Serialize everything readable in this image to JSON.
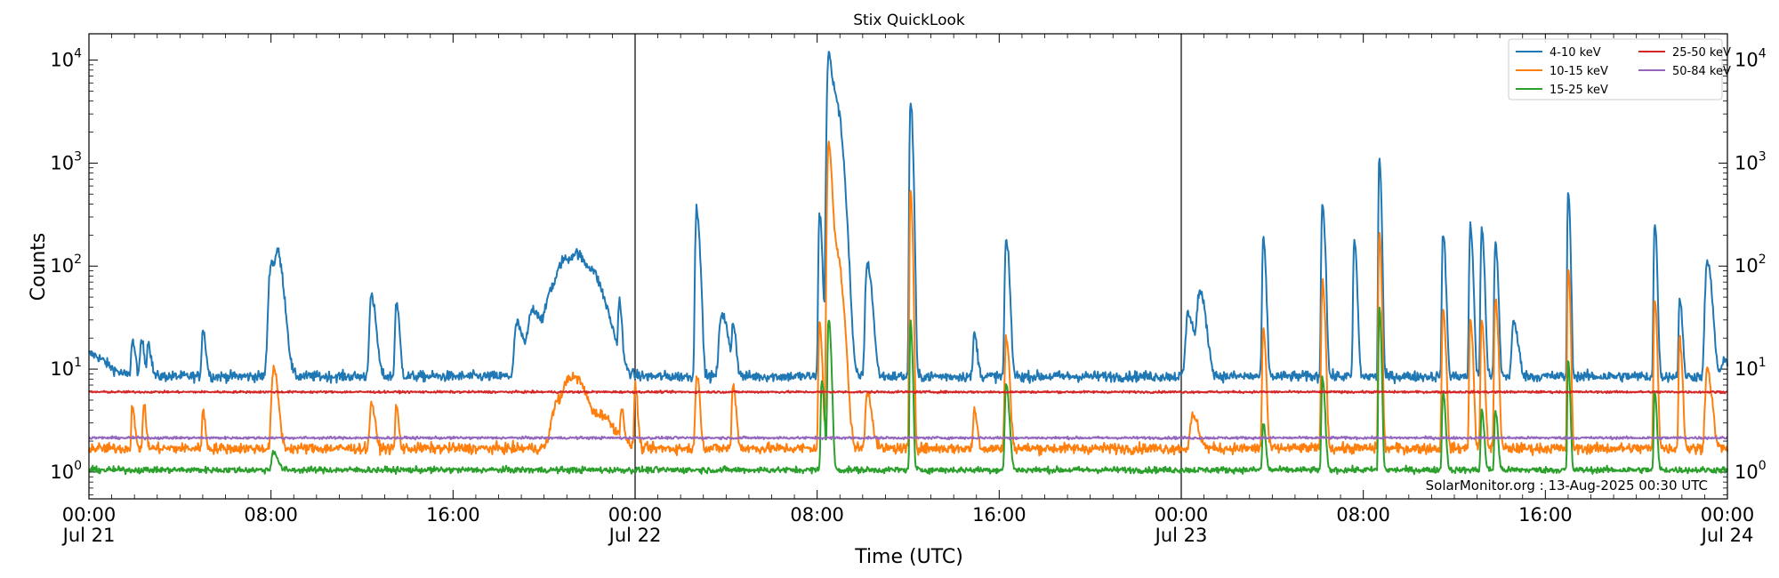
{
  "chart_data": {
    "type": "line",
    "title": "Stix QuickLook",
    "xlabel": "Time (UTC)",
    "ylabel": "Counts",
    "yscale": "log",
    "ylim": [
      0.55,
      18000
    ],
    "xlim_hours": [
      0,
      72
    ],
    "grid": false,
    "legend_position": "top-right",
    "y_ticks": [
      {
        "base": "10",
        "exp": "0",
        "value": 1
      },
      {
        "base": "10",
        "exp": "1",
        "value": 10
      },
      {
        "base": "10",
        "exp": "2",
        "value": 100
      },
      {
        "base": "10",
        "exp": "3",
        "value": 1000
      },
      {
        "base": "10",
        "exp": "4",
        "value": 10000
      }
    ],
    "x_ticks": [
      {
        "hour": 0,
        "time": "00:00",
        "date": "Jul 21"
      },
      {
        "hour": 8,
        "time": "08:00",
        "date": ""
      },
      {
        "hour": 16,
        "time": "16:00",
        "date": ""
      },
      {
        "hour": 24,
        "time": "00:00",
        "date": "Jul 22"
      },
      {
        "hour": 32,
        "time": "08:00",
        "date": ""
      },
      {
        "hour": 40,
        "time": "16:00",
        "date": ""
      },
      {
        "hour": 48,
        "time": "00:00",
        "date": "Jul 23"
      },
      {
        "hour": 56,
        "time": "08:00",
        "date": ""
      },
      {
        "hour": 64,
        "time": "16:00",
        "date": ""
      },
      {
        "hour": 72,
        "time": "00:00",
        "date": "Jul 24"
      }
    ],
    "day_boundaries_hours": [
      24,
      48
    ],
    "series": [
      {
        "name": "4-10 keV",
        "color": "#1f77b4",
        "baseline": 8.5,
        "noise": 0.05,
        "peaks": [
          [
            0,
            14,
            0.6
          ],
          [
            1.9,
            19,
            0.1
          ],
          [
            2.3,
            19,
            0.1
          ],
          [
            2.6,
            18,
            0.1
          ],
          [
            5,
            24,
            0.1
          ],
          [
            8,
            110,
            0.2
          ],
          [
            8.3,
            100,
            0.2
          ],
          [
            12.4,
            50,
            0.15
          ],
          [
            13.5,
            44,
            0.1
          ],
          [
            18.8,
            28,
            0.2
          ],
          [
            19.5,
            38,
            0.4
          ],
          [
            20.3,
            50,
            0.4
          ],
          [
            20.9,
            95,
            0.6
          ],
          [
            21.5,
            72,
            0.6
          ],
          [
            22.2,
            38,
            0.5
          ],
          [
            23.3,
            42,
            0.08
          ],
          [
            26.7,
            360,
            0.1
          ],
          [
            27.8,
            35,
            0.2
          ],
          [
            28.3,
            27,
            0.1
          ],
          [
            32.1,
            320,
            0.08
          ],
          [
            32.5,
            11500,
            0.12
          ],
          [
            32.8,
            4000,
            0.2
          ],
          [
            34.2,
            105,
            0.15
          ],
          [
            36.1,
            4000,
            0.07
          ],
          [
            38.9,
            22,
            0.1
          ],
          [
            40.3,
            175,
            0.1
          ],
          [
            48.3,
            35,
            0.2
          ],
          [
            48.8,
            55,
            0.2
          ],
          [
            51.6,
            180,
            0.08
          ],
          [
            54.2,
            410,
            0.08
          ],
          [
            55.6,
            175,
            0.08
          ],
          [
            56.7,
            1150,
            0.06
          ],
          [
            59.5,
            200,
            0.08
          ],
          [
            60.7,
            240,
            0.08
          ],
          [
            61.2,
            225,
            0.08
          ],
          [
            61.8,
            165,
            0.08
          ],
          [
            62.6,
            28,
            0.15
          ],
          [
            65,
            540,
            0.06
          ],
          [
            68.8,
            260,
            0.07
          ],
          [
            69.9,
            50,
            0.08
          ],
          [
            71.1,
            110,
            0.15
          ],
          [
            71.9,
            12,
            0.3
          ]
        ]
      },
      {
        "name": "10-15 keV",
        "color": "#ff7f0e",
        "baseline": 1.7,
        "noise": 0.05,
        "peaks": [
          [
            1.9,
            4.5,
            0.08
          ],
          [
            2.4,
            4.5,
            0.08
          ],
          [
            5,
            4,
            0.08
          ],
          [
            8.1,
            10,
            0.15
          ],
          [
            12.4,
            4.8,
            0.12
          ],
          [
            13.5,
            4.5,
            0.08
          ],
          [
            20.6,
            5,
            0.5
          ],
          [
            21.1,
            6,
            0.4
          ],
          [
            21.6,
            4.5,
            0.5
          ],
          [
            22.6,
            3,
            0.5
          ],
          [
            23.4,
            4,
            0.08
          ],
          [
            24,
            7,
            0.08
          ],
          [
            26.7,
            9,
            0.1
          ],
          [
            28.3,
            7,
            0.1
          ],
          [
            32.1,
            27,
            0.08
          ],
          [
            32.5,
            1600,
            0.1
          ],
          [
            32.8,
            150,
            0.2
          ],
          [
            34.2,
            6,
            0.15
          ],
          [
            36.1,
            560,
            0.06
          ],
          [
            38.9,
            4,
            0.1
          ],
          [
            40.3,
            20,
            0.1
          ],
          [
            48.5,
            3.5,
            0.2
          ],
          [
            51.6,
            25,
            0.08
          ],
          [
            54.2,
            70,
            0.08
          ],
          [
            56.7,
            210,
            0.06
          ],
          [
            59.5,
            40,
            0.08
          ],
          [
            60.7,
            30,
            0.08
          ],
          [
            61.2,
            30,
            0.08
          ],
          [
            61.8,
            50,
            0.08
          ],
          [
            65,
            100,
            0.06
          ],
          [
            68.8,
            50,
            0.07
          ],
          [
            69.9,
            20,
            0.08
          ],
          [
            71.1,
            10,
            0.15
          ]
        ]
      },
      {
        "name": "15-25 keV",
        "color": "#2ca02c",
        "baseline": 1.05,
        "noise": 0.03,
        "peaks": [
          [
            8.1,
            1.6,
            0.15
          ],
          [
            32.2,
            8,
            0.08
          ],
          [
            32.5,
            30,
            0.08
          ],
          [
            36.1,
            30,
            0.06
          ],
          [
            40.3,
            7,
            0.1
          ],
          [
            51.6,
            3,
            0.08
          ],
          [
            54.2,
            8,
            0.08
          ],
          [
            56.7,
            40,
            0.06
          ],
          [
            59.5,
            6,
            0.08
          ],
          [
            61.2,
            4,
            0.08
          ],
          [
            61.8,
            4,
            0.08
          ],
          [
            65,
            12,
            0.06
          ],
          [
            68.8,
            6,
            0.07
          ]
        ]
      },
      {
        "name": "25-50 keV",
        "color": "#d62728",
        "baseline": 6.0,
        "noise": 0.01,
        "peaks": []
      },
      {
        "name": "50-84 keV",
        "color": "#9467bd",
        "baseline": 2.15,
        "noise": 0.012,
        "peaks": []
      }
    ],
    "credit": "SolarMonitor.org : 13-Aug-2025 00:30 UTC"
  }
}
